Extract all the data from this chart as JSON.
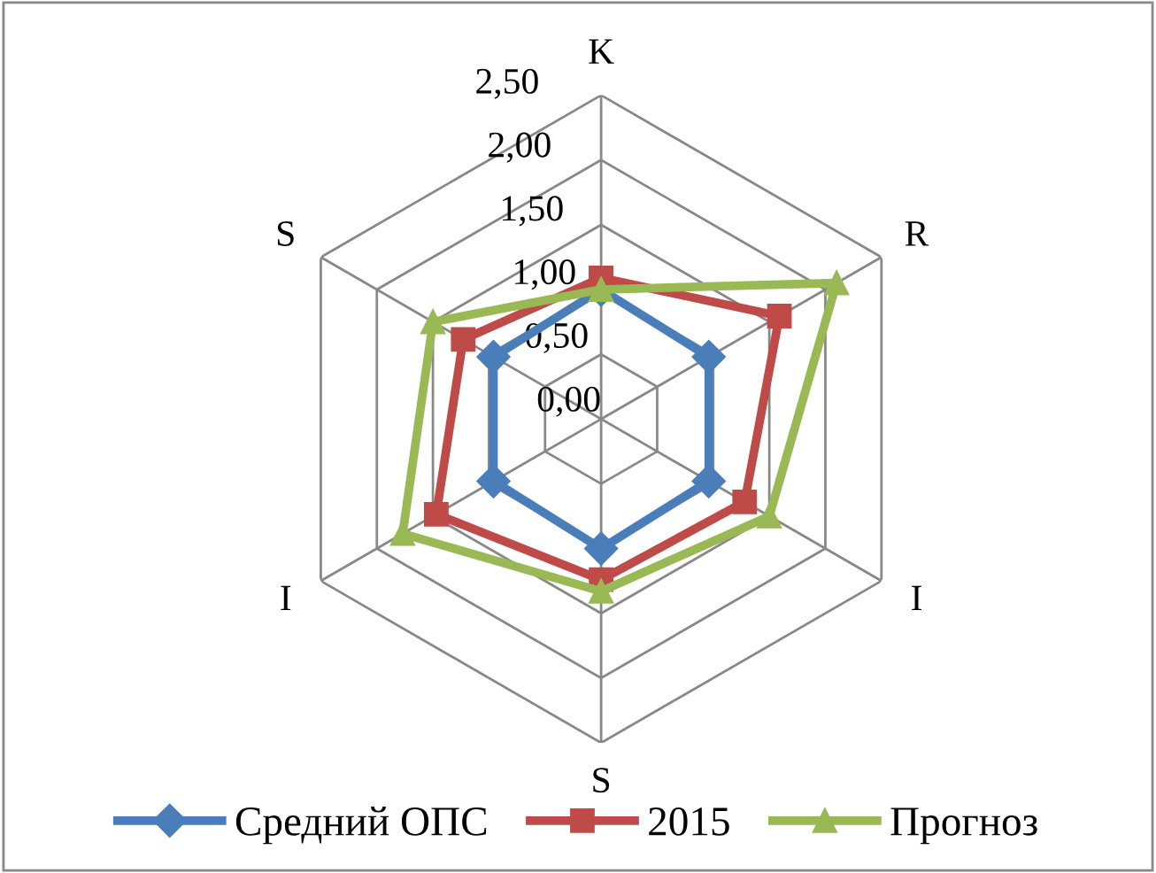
{
  "chart_data": {
    "type": "radar",
    "categories": [
      "K",
      "R",
      "I",
      "S",
      "I",
      "S"
    ],
    "series": [
      {
        "name": "Средний ОПС",
        "color": "#4a7ebb",
        "values": [
          1.0,
          0.96,
          0.96,
          1.0,
          0.96,
          0.96
        ],
        "marker": "diamond"
      },
      {
        "name": "2015",
        "color": "#be4b48",
        "values": [
          1.09,
          1.59,
          1.28,
          1.24,
          1.47,
          1.23
        ],
        "marker": "square"
      },
      {
        "name": "Прогноз",
        "color": "#98b954",
        "values": [
          1.0,
          2.1,
          1.5,
          1.33,
          1.77,
          1.5
        ],
        "marker": "triangle"
      }
    ],
    "ylim": [
      0,
      2.5
    ],
    "yticks": [
      {
        "value": 0,
        "label": "0,00"
      },
      {
        "value": 0.5,
        "label": "0,50"
      },
      {
        "value": 1.0,
        "label": "1,00"
      },
      {
        "value": 1.5,
        "label": "1,50"
      },
      {
        "value": 2.0,
        "label": "2,00"
      },
      {
        "value": 2.5,
        "label": "2,50"
      }
    ],
    "grid": true,
    "legend": "bottom"
  }
}
